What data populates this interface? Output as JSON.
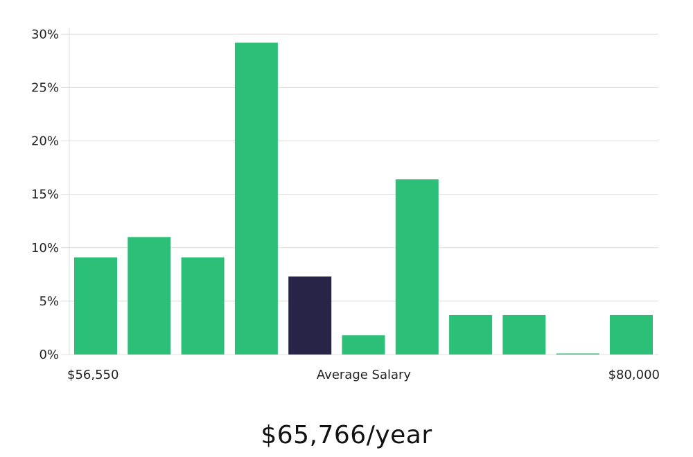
{
  "chart_data": {
    "type": "bar",
    "y_tick_labels": [
      "0%",
      "5%",
      "10%",
      "15%",
      "20%",
      "25%",
      "30%"
    ],
    "y_ticks": [
      0,
      5,
      10,
      15,
      20,
      25,
      30
    ],
    "ylim": [
      0,
      30.6
    ],
    "values": [
      9.1,
      11.0,
      9.1,
      29.2,
      7.3,
      1.8,
      16.4,
      3.7,
      3.7,
      0.1,
      3.7
    ],
    "highlight_index": 4,
    "bar_color": "#2bbf77",
    "highlight_color": "#272447",
    "x_min_label": "$56,550",
    "x_center_label": "Average Salary",
    "x_max_label": "$80,000",
    "grid": true
  },
  "headline": "$65,766/year"
}
